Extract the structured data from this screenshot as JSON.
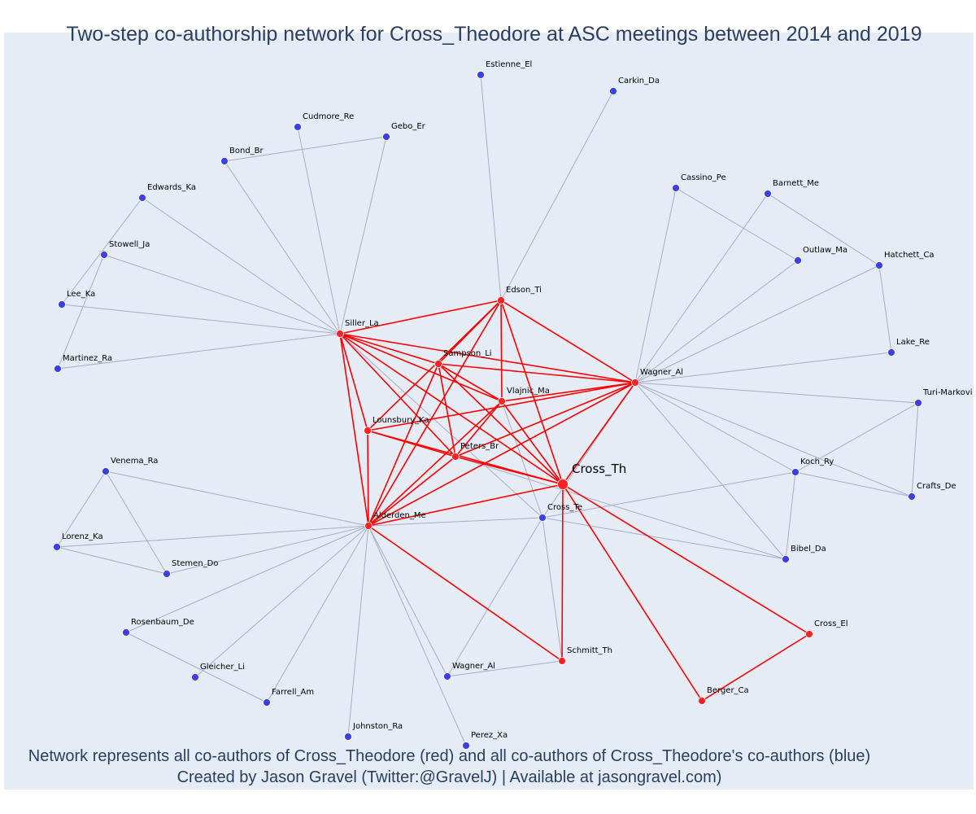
{
  "title": "Two-step co-authorship network for Cross_Theodore at ASC meetings between 2014 and 2019",
  "caption_line1": "Network represents all co-authors of Cross_Theodore (red) and all co-authors of Cross_Theodore's co-authors (blue)",
  "caption_line2": "Created by Jason Gravel (Twitter:@GravelJ) | Available at jasongravel.com)",
  "colors": {
    "background": "#e5ecf6",
    "title_text": "#2a3f5f",
    "coauthor_node": "#ff2222",
    "coauthor_edge": "#ff0000",
    "second_step_node": "#3d3fe6",
    "second_step_edge": "#a9adc4"
  },
  "nodes": [
    {
      "id": "Cross_Th",
      "label": "Cross_Th",
      "group": "focal"
    },
    {
      "id": "Siller_La",
      "label": "Siller_La",
      "group": "coauthor"
    },
    {
      "id": "Edson_Ti",
      "label": "Edson_Ti",
      "group": "coauthor"
    },
    {
      "id": "Sampson_Li",
      "label": "Sampson_Li",
      "group": "coauthor"
    },
    {
      "id": "Vlajnic_Ma",
      "label": "Vlajnic_Ma",
      "group": "coauthor"
    },
    {
      "id": "Wagner_Al_1",
      "label": "Wagner_Al",
      "group": "coauthor"
    },
    {
      "id": "Lounsbury_Ka",
      "label": "Lounsbury_Ka",
      "group": "coauthor"
    },
    {
      "id": "Peters_Br",
      "label": "Peters_Br",
      "group": "coauthor"
    },
    {
      "id": "Alderden_Me",
      "label": "Alderden_Me",
      "group": "coauthor"
    },
    {
      "id": "Schmitt_Th",
      "label": "Schmitt_Th",
      "group": "coauthor"
    },
    {
      "id": "Cross_El",
      "label": "Cross_El",
      "group": "coauthor"
    },
    {
      "id": "Berger_Ca",
      "label": "Berger_Ca",
      "group": "coauthor"
    },
    {
      "id": "Estienne_El",
      "label": "Estienne_El",
      "group": "second"
    },
    {
      "id": "Carkin_Da",
      "label": "Carkin_Da",
      "group": "second"
    },
    {
      "id": "Cudmore_Re",
      "label": "Cudmore_Re",
      "group": "second"
    },
    {
      "id": "Gebo_Er",
      "label": "Gebo_Er",
      "group": "second"
    },
    {
      "id": "Bond_Br",
      "label": "Bond_Br",
      "group": "second"
    },
    {
      "id": "Edwards_Ka",
      "label": "Edwards_Ka",
      "group": "second"
    },
    {
      "id": "Stowell_Ja",
      "label": "Stowell_Ja",
      "group": "second"
    },
    {
      "id": "Lee_Ka",
      "label": "Lee_Ka",
      "group": "second"
    },
    {
      "id": "Martinez_Ra",
      "label": "Martinez_Ra",
      "group": "second"
    },
    {
      "id": "Cassino_Pe",
      "label": "Cassino_Pe",
      "group": "second"
    },
    {
      "id": "Barnett_Me",
      "label": "Barnett_Me",
      "group": "second"
    },
    {
      "id": "Outlaw_Ma",
      "label": "Outlaw_Ma",
      "group": "second"
    },
    {
      "id": "Hatchett_Ca",
      "label": "Hatchett_Ca",
      "group": "second"
    },
    {
      "id": "Lake_Re",
      "label": "Lake_Re",
      "group": "second"
    },
    {
      "id": "Turi_Markovi",
      "label": "Turi-Markovi",
      "group": "second"
    },
    {
      "id": "Crafts_De",
      "label": "Crafts_De",
      "group": "second"
    },
    {
      "id": "Koch_Ry",
      "label": "Koch_Ry",
      "group": "second"
    },
    {
      "id": "Bibel_Da",
      "label": "Bibel_Da",
      "group": "second"
    },
    {
      "id": "Cross_Te",
      "label": "Cross_Te",
      "group": "second"
    },
    {
      "id": "Venema_Ra",
      "label": "Venema_Ra",
      "group": "second"
    },
    {
      "id": "Lorenz_Ka",
      "label": "Lorenz_Ka",
      "group": "second"
    },
    {
      "id": "Stemen_Do",
      "label": "Stemen_Do",
      "group": "second"
    },
    {
      "id": "Rosenbaum_De",
      "label": "Rosenbaum_De",
      "group": "second"
    },
    {
      "id": "Gleicher_Li",
      "label": "Gleicher_Li",
      "group": "second"
    },
    {
      "id": "Farrell_Am",
      "label": "Farrell_Am",
      "group": "second"
    },
    {
      "id": "Johnston_Ra",
      "label": "Johnston_Ra",
      "group": "second"
    },
    {
      "id": "Perez_Xa",
      "label": "Perez_Xa",
      "group": "second"
    },
    {
      "id": "Wagner_Al_2",
      "label": "Wagner_Al",
      "group": "second"
    }
  ],
  "edges": [
    [
      "Cross_Th",
      "Siller_La"
    ],
    [
      "Cross_Th",
      "Edson_Ti"
    ],
    [
      "Cross_Th",
      "Sampson_Li"
    ],
    [
      "Cross_Th",
      "Vlajnic_Ma"
    ],
    [
      "Cross_Th",
      "Wagner_Al_1"
    ],
    [
      "Cross_Th",
      "Lounsbury_Ka"
    ],
    [
      "Cross_Th",
      "Peters_Br"
    ],
    [
      "Cross_Th",
      "Alderden_Me"
    ],
    [
      "Cross_Th",
      "Schmitt_Th"
    ],
    [
      "Cross_Th",
      "Cross_El"
    ],
    [
      "Cross_Th",
      "Berger_Ca"
    ],
    [
      "Siller_La",
      "Edson_Ti"
    ],
    [
      "Siller_La",
      "Sampson_Li"
    ],
    [
      "Siller_La",
      "Vlajnic_Ma"
    ],
    [
      "Siller_La",
      "Wagner_Al_1"
    ],
    [
      "Siller_La",
      "Lounsbury_Ka"
    ],
    [
      "Siller_La",
      "Peters_Br"
    ],
    [
      "Siller_La",
      "Alderden_Me"
    ],
    [
      "Edson_Ti",
      "Sampson_Li"
    ],
    [
      "Edson_Ti",
      "Vlajnic_Ma"
    ],
    [
      "Edson_Ti",
      "Wagner_Al_1"
    ],
    [
      "Edson_Ti",
      "Lounsbury_Ka"
    ],
    [
      "Edson_Ti",
      "Alderden_Me"
    ],
    [
      "Sampson_Li",
      "Vlajnic_Ma"
    ],
    [
      "Sampson_Li",
      "Wagner_Al_1"
    ],
    [
      "Sampson_Li",
      "Peters_Br"
    ],
    [
      "Sampson_Li",
      "Alderden_Me"
    ],
    [
      "Vlajnic_Ma",
      "Wagner_Al_1"
    ],
    [
      "Vlajnic_Ma",
      "Alderden_Me"
    ],
    [
      "Vlajnic_Ma",
      "Peters_Br"
    ],
    [
      "Wagner_Al_1",
      "Lounsbury_Ka"
    ],
    [
      "Wagner_Al_1",
      "Peters_Br"
    ],
    [
      "Wagner_Al_1",
      "Alderden_Me"
    ],
    [
      "Lounsbury_Ka",
      "Peters_Br"
    ],
    [
      "Lounsbury_Ka",
      "Alderden_Me"
    ],
    [
      "Peters_Br",
      "Alderden_Me"
    ],
    [
      "Alderden_Me",
      "Schmitt_Th"
    ],
    [
      "Cross_El",
      "Berger_Ca"
    ],
    [
      "Siller_La",
      "Bond_Br"
    ],
    [
      "Siller_La",
      "Cudmore_Re"
    ],
    [
      "Siller_La",
      "Gebo_Er"
    ],
    [
      "Siller_La",
      "Edwards_Ka"
    ],
    [
      "Siller_La",
      "Stowell_Ja"
    ],
    [
      "Siller_La",
      "Lee_Ka"
    ],
    [
      "Siller_La",
      "Martinez_Ra"
    ],
    [
      "Siller_La",
      "Cross_Te"
    ],
    [
      "Bond_Br",
      "Gebo_Er"
    ],
    [
      "Edwards_Ka",
      "Lee_Ka"
    ],
    [
      "Stowell_Ja",
      "Martinez_Ra"
    ],
    [
      "Edson_Ti",
      "Estienne_El"
    ],
    [
      "Edson_Ti",
      "Carkin_Da"
    ],
    [
      "Wagner_Al_1",
      "Cassino_Pe"
    ],
    [
      "Wagner_Al_1",
      "Barnett_Me"
    ],
    [
      "Wagner_Al_1",
      "Outlaw_Ma"
    ],
    [
      "Wagner_Al_1",
      "Hatchett_Ca"
    ],
    [
      "Wagner_Al_1",
      "Lake_Re"
    ],
    [
      "Wagner_Al_1",
      "Turi_Markovi"
    ],
    [
      "Wagner_Al_1",
      "Koch_Ry"
    ],
    [
      "Wagner_Al_1",
      "Crafts_De"
    ],
    [
      "Wagner_Al_1",
      "Bibel_Da"
    ],
    [
      "Wagner_Al_1",
      "Cross_Te"
    ],
    [
      "Cassino_Pe",
      "Outlaw_Ma"
    ],
    [
      "Barnett_Me",
      "Hatchett_Ca"
    ],
    [
      "Hatchett_Ca",
      "Lake_Re"
    ],
    [
      "Turi_Markovi",
      "Koch_Ry"
    ],
    [
      "Turi_Markovi",
      "Crafts_De"
    ],
    [
      "Koch_Ry",
      "Bibel_Da"
    ],
    [
      "Koch_Ry",
      "Crafts_De"
    ],
    [
      "Cross_Te",
      "Koch_Ry"
    ],
    [
      "Cross_Te",
      "Bibel_Da"
    ],
    [
      "Cross_Te",
      "Alderden_Me"
    ],
    [
      "Cross_Te",
      "Schmitt_Th"
    ],
    [
      "Cross_Te",
      "Wagner_Al_2"
    ],
    [
      "Cross_Te",
      "Vlajnic_Ma"
    ],
    [
      "Peters_Br",
      "Bibel_Da"
    ],
    [
      "Alderden_Me",
      "Venema_Ra"
    ],
    [
      "Alderden_Me",
      "Lorenz_Ka"
    ],
    [
      "Alderden_Me",
      "Stemen_Do"
    ],
    [
      "Alderden_Me",
      "Rosenbaum_De"
    ],
    [
      "Alderden_Me",
      "Gleicher_Li"
    ],
    [
      "Alderden_Me",
      "Farrell_Am"
    ],
    [
      "Alderden_Me",
      "Johnston_Ra"
    ],
    [
      "Alderden_Me",
      "Perez_Xa"
    ],
    [
      "Alderden_Me",
      "Wagner_Al_2"
    ],
    [
      "Venema_Ra",
      "Lorenz_Ka"
    ],
    [
      "Venema_Ra",
      "Stemen_Do"
    ],
    [
      "Lorenz_Ka",
      "Stemen_Do"
    ],
    [
      "Rosenbaum_De",
      "Farrell_Am"
    ],
    [
      "Schmitt_Th",
      "Wagner_Al_2"
    ]
  ]
}
